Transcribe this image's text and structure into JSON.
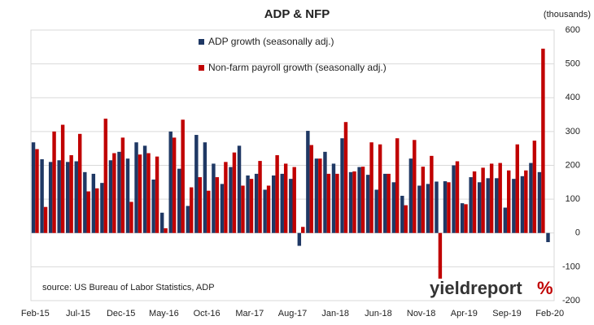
{
  "chart_data": {
    "type": "bar",
    "title": "ADP & NFP",
    "y_label": "(thousands)",
    "source": "source: US Bureau of Labor Statistics, ADP",
    "logo": "yieldreport",
    "logo_mark": "%",
    "categories": [
      "Feb-15",
      null,
      null,
      null,
      null,
      "Jul-15",
      null,
      null,
      null,
      null,
      "Dec-15",
      null,
      null,
      null,
      null,
      "May-16",
      null,
      null,
      null,
      null,
      "Oct-16",
      null,
      null,
      null,
      null,
      "Mar-17",
      null,
      null,
      null,
      null,
      "Aug-17",
      null,
      null,
      null,
      null,
      "Jan-18",
      null,
      null,
      null,
      null,
      "Jun-18",
      null,
      null,
      null,
      null,
      "Nov-18",
      null,
      null,
      null,
      null,
      "Apr-19",
      null,
      null,
      null,
      null,
      "Sep-19",
      null,
      null,
      null,
      null,
      "Feb-20"
    ],
    "series": [
      {
        "name": "ADP growth (seasonally adj.)",
        "color": "#1f3864",
        "values": [
          268,
          218,
          210,
          215,
          210,
          212,
          180,
          175,
          148,
          215,
          240,
          220,
          268,
          258,
          158,
          60,
          300,
          190,
          80,
          290,
          268,
          205,
          145,
          195,
          258,
          170,
          175,
          128,
          170,
          175,
          160,
          -38,
          302,
          220,
          240,
          205,
          280,
          180,
          195,
          172,
          128,
          175,
          150,
          110,
          220,
          140,
          145,
          152,
          153,
          200,
          88,
          165,
          150,
          162,
          162,
          75,
          160,
          168,
          207,
          180,
          -27
        ]
      },
      {
        "name": "Non-farm payroll growth (seasonally adj.)",
        "color": "#c00000",
        "values": [
          248,
          77,
          300,
          320,
          230,
          293,
          123,
          132,
          338,
          236,
          282,
          92,
          232,
          236,
          226,
          14,
          282,
          335,
          135,
          165,
          125,
          165,
          210,
          238,
          140,
          160,
          213,
          140,
          230,
          205,
          195,
          18,
          260,
          220,
          175,
          175,
          328,
          182,
          196,
          268,
          262,
          175,
          280,
          82,
          275,
          196,
          228,
          -135,
          150,
          212,
          85,
          182,
          193,
          205,
          207,
          185,
          262,
          185,
          273,
          545,
          null
        ]
      }
    ],
    "ylim": [
      -200,
      600
    ],
    "yticks": [
      -200,
      -100,
      0,
      100,
      200,
      300,
      400,
      500,
      600
    ],
    "grid": true,
    "legend": "top"
  }
}
